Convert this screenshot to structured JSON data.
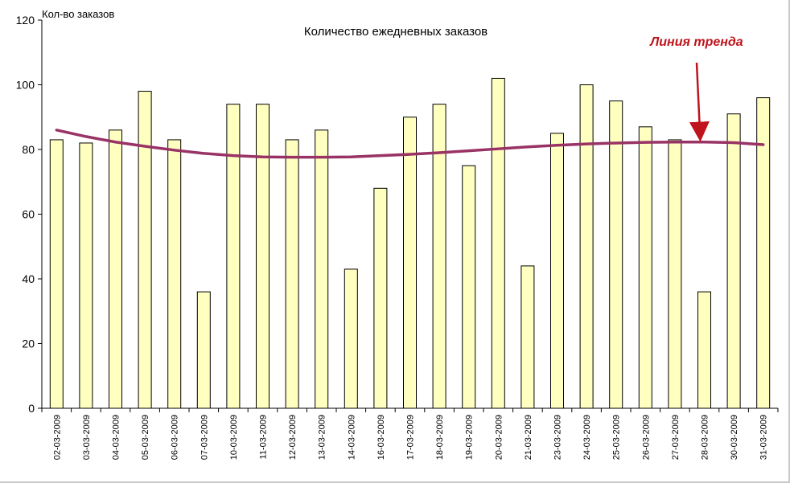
{
  "chart_data": {
    "type": "bar",
    "title": "Количество ежедневных заказов",
    "ylabel": "Кол-во заказов",
    "xlabel": "",
    "ylim": [
      0,
      120
    ],
    "yticks": [
      0,
      20,
      40,
      60,
      80,
      100,
      120
    ],
    "grid": false,
    "categories": [
      "02-03-2009",
      "03-03-2009",
      "04-03-2009",
      "05-03-2009",
      "06-03-2009",
      "07-03-2009",
      "10-03-2009",
      "11-03-2009",
      "12-03-2009",
      "13-03-2009",
      "14-03-2009",
      "16-03-2009",
      "17-03-2009",
      "18-03-2009",
      "19-03-2009",
      "20-03-2009",
      "21-03-2009",
      "23-03-2009",
      "24-03-2009",
      "25-03-2009",
      "26-03-2009",
      "27-03-2009",
      "28-03-2009",
      "30-03-2009",
      "31-03-2009"
    ],
    "series": [
      {
        "type": "bar",
        "values": [
          83,
          82,
          86,
          98,
          83,
          36,
          94,
          94,
          83,
          86,
          43,
          68,
          90,
          94,
          75,
          102,
          44,
          85,
          100,
          95,
          87,
          83,
          36,
          91,
          96
        ]
      },
      {
        "type": "line",
        "values": [
          86,
          84,
          82.3,
          81,
          79.8,
          78.8,
          78.1,
          77.7,
          77.6,
          77.6,
          77.7,
          78.1,
          78.5,
          79,
          79.6,
          80.2,
          80.8,
          81.3,
          81.7,
          82,
          82.2,
          82.3,
          82.3,
          82.1,
          81.5
        ]
      }
    ],
    "annotation": "Линия тренда",
    "colors": {
      "bar_fill": "#ffffc0",
      "bar_stroke": "#000000",
      "trend_line": "#993366",
      "annotation": "#c0141c"
    }
  }
}
